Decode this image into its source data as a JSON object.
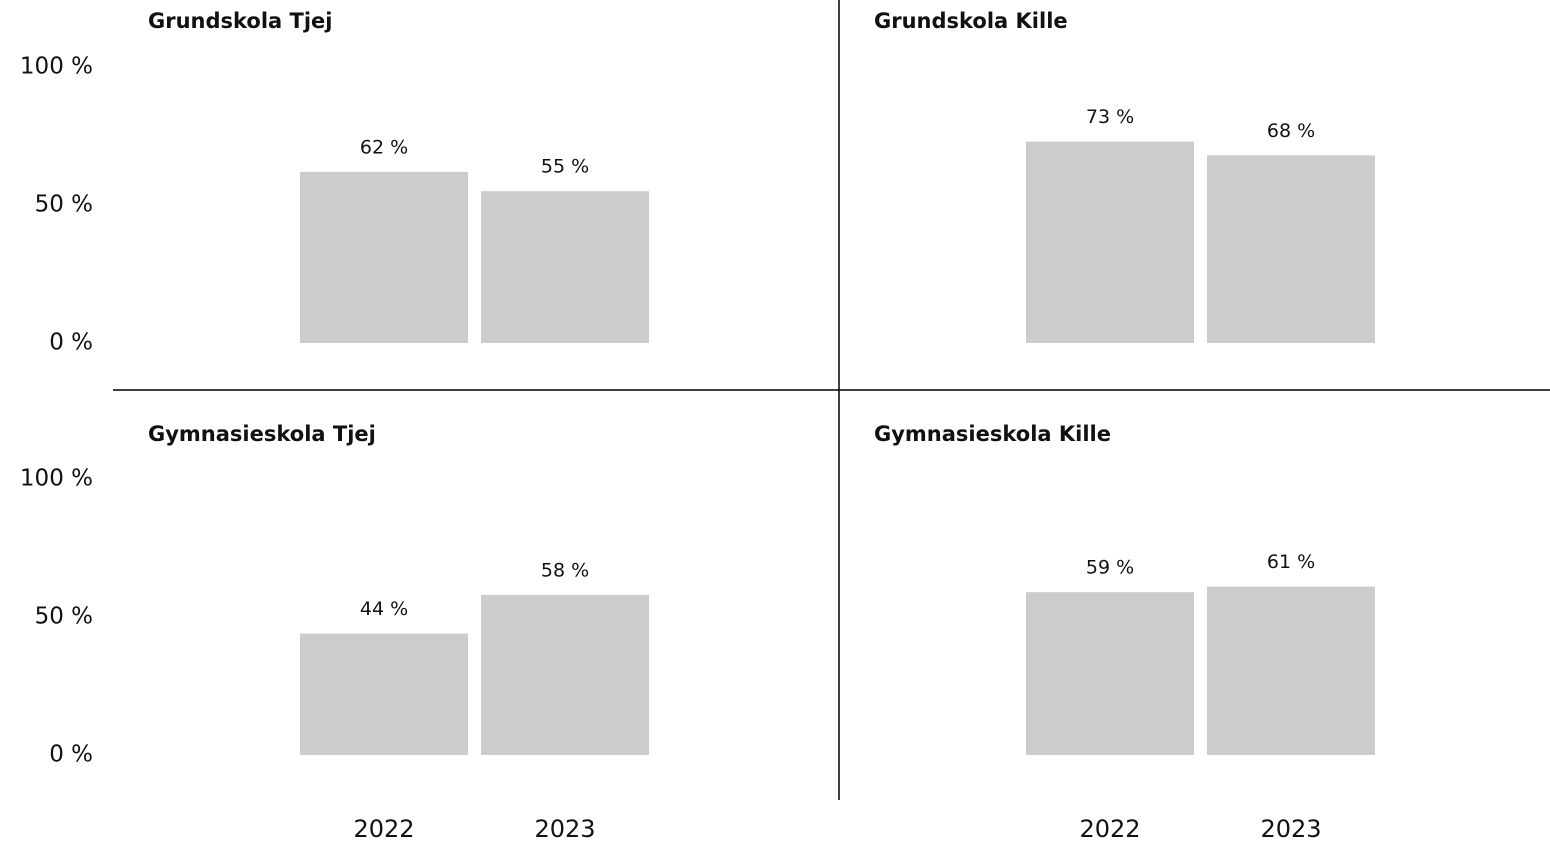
{
  "chart_data": [
    {
      "type": "bar",
      "title": "Grundskola Tjej",
      "categories": [
        null,
        null
      ],
      "values": [
        62,
        55
      ],
      "value_labels": [
        "62 %",
        "55 %"
      ],
      "color": "#cccccc",
      "ylim": [
        0,
        100
      ],
      "yticks": [
        {
          "value": 0,
          "label": "0 %"
        },
        {
          "value": 50,
          "label": "50 %"
        },
        {
          "value": 100,
          "label": "100 %"
        }
      ]
    },
    {
      "type": "bar",
      "title": "Grundskola Kille",
      "categories": [
        null,
        null
      ],
      "values": [
        73,
        68
      ],
      "value_labels": [
        "73 %",
        "68 %"
      ],
      "color": "#cccccc",
      "ylim": [
        0,
        100
      ]
    },
    {
      "type": "bar",
      "title": "Gymnasieskola Tjej",
      "categories": [
        "2022",
        "2023"
      ],
      "values": [
        44,
        58
      ],
      "value_labels": [
        "44 %",
        "58 %"
      ],
      "color": "#cccccc",
      "ylim": [
        0,
        100
      ],
      "yticks": [
        {
          "value": 0,
          "label": "0 %"
        },
        {
          "value": 50,
          "label": "50 %"
        },
        {
          "value": 100,
          "label": "100 %"
        }
      ]
    },
    {
      "type": "bar",
      "title": "Gymnasieskola Kille",
      "categories": [
        "2022",
        "2023"
      ],
      "values": [
        59,
        61
      ],
      "value_labels": [
        "59 %",
        "61 %"
      ],
      "color": "#cccccc",
      "ylim": [
        0,
        100
      ]
    }
  ]
}
